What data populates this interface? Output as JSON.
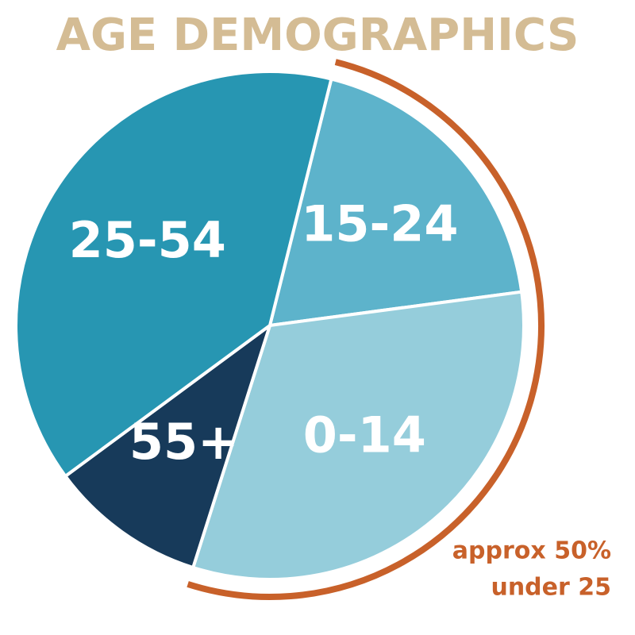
{
  "chart_data": {
    "type": "pie",
    "title": "AGE DEMOGRAPHICS",
    "categories": [
      "15-24",
      "0-14",
      "55+",
      "25-54"
    ],
    "values": [
      19,
      32,
      10,
      39
    ],
    "colors": [
      "#5db3cb",
      "#95cddb",
      "#173a5a",
      "#2796b2"
    ],
    "annotation": [
      "approx 50%",
      "under 25"
    ],
    "annotation_color": "#c8612a"
  }
}
